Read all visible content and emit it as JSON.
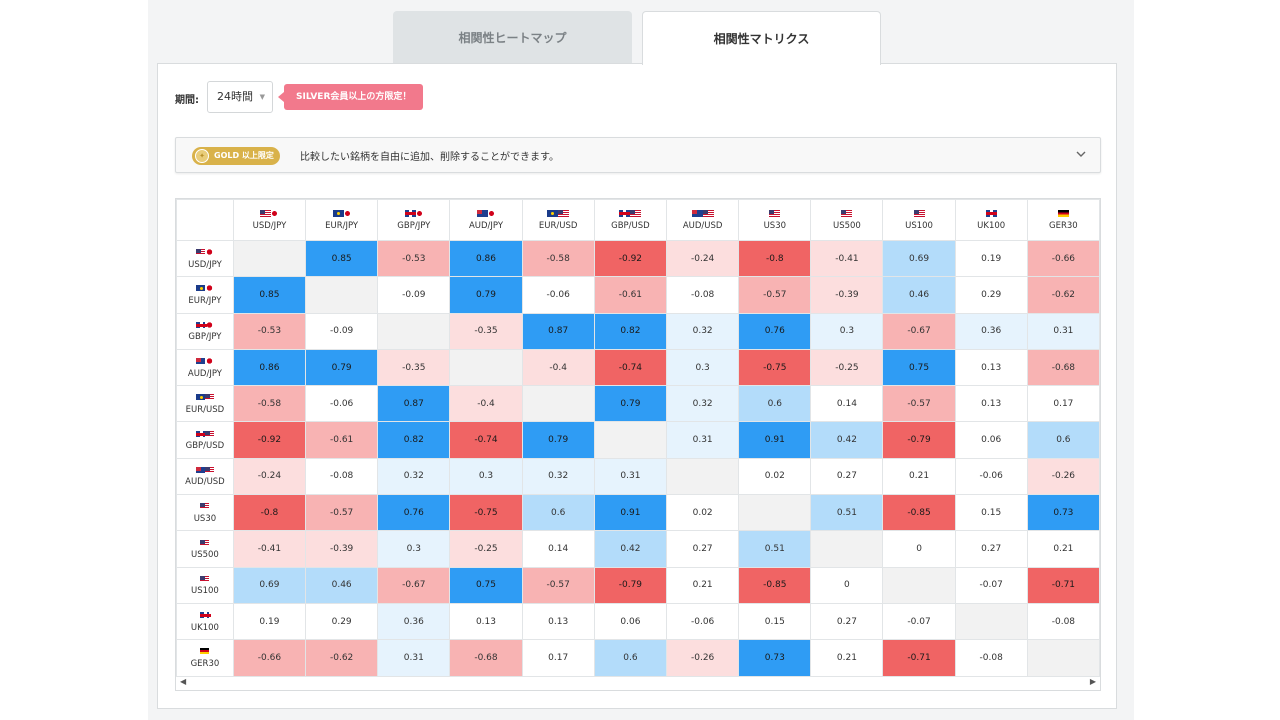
{
  "tabs": [
    {
      "label": "相関性ヒートマップ",
      "active": false
    },
    {
      "label": "相関性マトリクス",
      "active": true
    }
  ],
  "period": {
    "label": "期間:",
    "value": "24時間"
  },
  "silver_badge": "SILVER会員以上の方限定！",
  "gold_bar": {
    "badge": "GOLD 以上限定",
    "text": "比較したい銘柄を自由に追加、削除することができます。"
  },
  "colors": {
    "strong_pos": "#2f9cf4",
    "light_pos": "#b3dcfa",
    "faint_pos": "#e6f3fd",
    "strong_neg": "#f06464",
    "light_neg": "#f8b3b3",
    "faint_neg": "#fcdede",
    "self": "#f2f2f2"
  },
  "symbols": [
    {
      "label": "USD/JPY",
      "flags": [
        "us",
        "jp"
      ]
    },
    {
      "label": "EUR/JPY",
      "flags": [
        "eu",
        "jp"
      ]
    },
    {
      "label": "GBP/JPY",
      "flags": [
        "gb",
        "jp"
      ]
    },
    {
      "label": "AUD/JPY",
      "flags": [
        "au",
        "jp"
      ]
    },
    {
      "label": "EUR/USD",
      "flags": [
        "eu",
        "us"
      ]
    },
    {
      "label": "GBP/USD",
      "flags": [
        "gb",
        "us"
      ]
    },
    {
      "label": "AUD/USD",
      "flags": [
        "au",
        "us"
      ]
    },
    {
      "label": "US30",
      "flags": [
        "us"
      ]
    },
    {
      "label": "US500",
      "flags": [
        "us"
      ]
    },
    {
      "label": "US100",
      "flags": [
        "us"
      ]
    },
    {
      "label": "UK100",
      "flags": [
        "gb"
      ]
    },
    {
      "label": "GER30",
      "flags": [
        "de"
      ]
    }
  ],
  "matrix": [
    [
      "",
      "0.85",
      "-0.53",
      "0.86",
      "-0.58",
      "-0.92",
      "-0.24",
      "-0.8",
      "-0.41",
      "0.69",
      "0.19",
      "-0.66"
    ],
    [
      "0.85",
      "",
      "-0.09",
      "0.79",
      "-0.06",
      "-0.61",
      "-0.08",
      "-0.57",
      "-0.39",
      "0.46",
      "0.29",
      "-0.62"
    ],
    [
      "-0.53",
      "-0.09",
      "",
      "-0.35",
      "0.87",
      "0.82",
      "0.32",
      "0.76",
      "0.3",
      "-0.67",
      "0.36",
      "0.31"
    ],
    [
      "0.86",
      "0.79",
      "-0.35",
      "",
      "-0.4",
      "-0.74",
      "0.3",
      "-0.75",
      "-0.25",
      "0.75",
      "0.13",
      "-0.68"
    ],
    [
      "-0.58",
      "-0.06",
      "0.87",
      "-0.4",
      "",
      "0.79",
      "0.32",
      "0.6",
      "0.14",
      "-0.57",
      "0.13",
      "0.17"
    ],
    [
      "-0.92",
      "-0.61",
      "0.82",
      "-0.74",
      "0.79",
      "",
      "0.31",
      "0.91",
      "0.42",
      "-0.79",
      "0.06",
      "0.6"
    ],
    [
      "-0.24",
      "-0.08",
      "0.32",
      "0.3",
      "0.32",
      "0.31",
      "",
      "0.02",
      "0.27",
      "0.21",
      "-0.06",
      "-0.26"
    ],
    [
      "-0.8",
      "-0.57",
      "0.76",
      "-0.75",
      "0.6",
      "0.91",
      "0.02",
      "",
      "0.51",
      "-0.85",
      "0.15",
      "0.73"
    ],
    [
      "-0.41",
      "-0.39",
      "0.3",
      "-0.25",
      "0.14",
      "0.42",
      "0.27",
      "0.51",
      "",
      "0",
      "0.27",
      "0.21"
    ],
    [
      "0.69",
      "0.46",
      "-0.67",
      "0.75",
      "-0.57",
      "-0.79",
      "0.21",
      "-0.85",
      "0",
      "",
      "-0.07",
      "-0.71"
    ],
    [
      "0.19",
      "0.29",
      "0.36",
      "0.13",
      "0.13",
      "0.06",
      "-0.06",
      "0.15",
      "0.27",
      "-0.07",
      "",
      "-0.08"
    ],
    [
      "-0.66",
      "-0.62",
      "0.31",
      "-0.68",
      "0.17",
      "0.6",
      "-0.26",
      "0.73",
      "0.21",
      "-0.71",
      "-0.08",
      ""
    ]
  ]
}
